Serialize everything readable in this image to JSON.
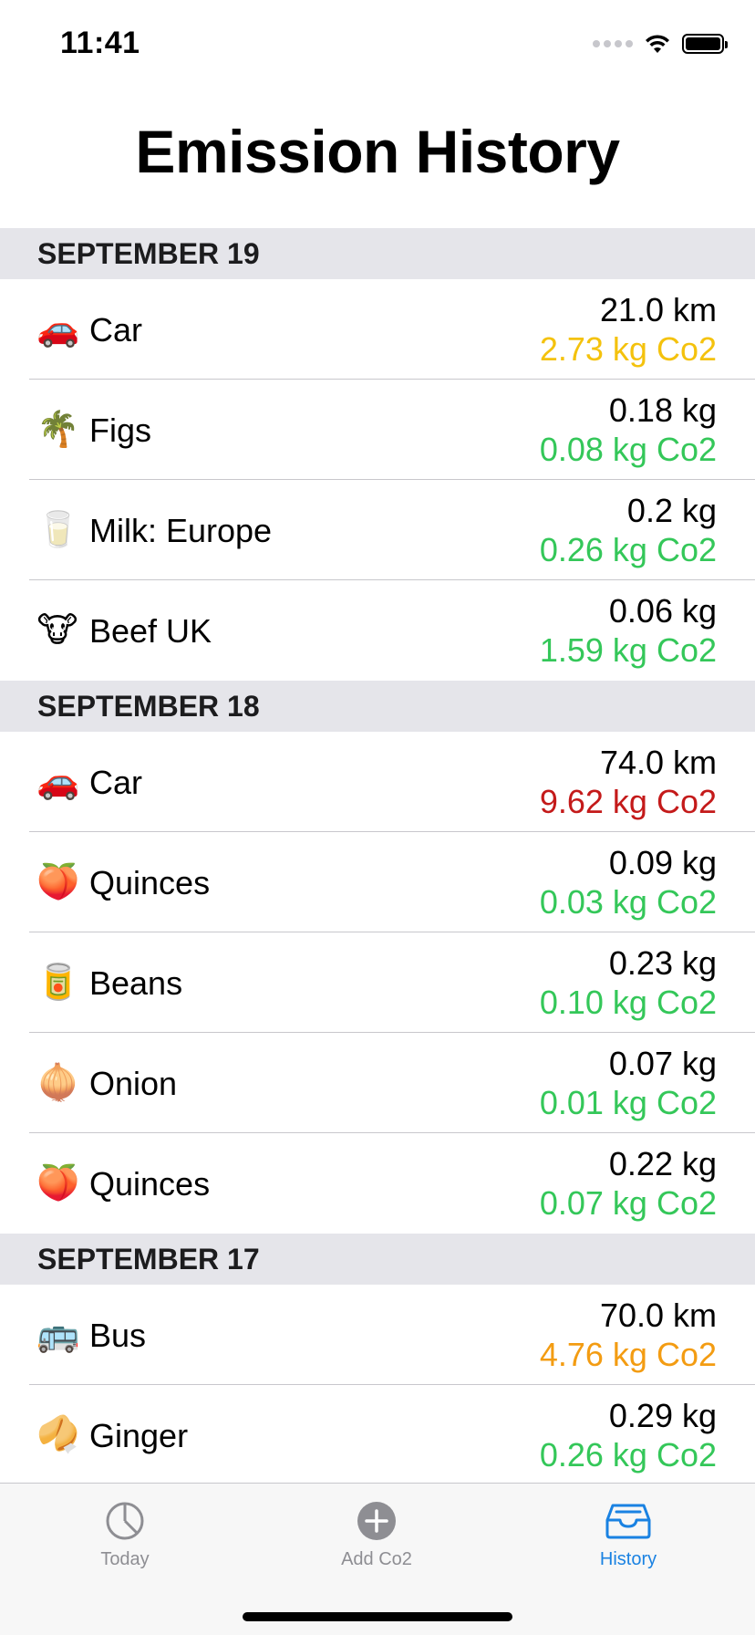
{
  "status_bar": {
    "time": "11:41"
  },
  "header": {
    "title": "Emission History"
  },
  "colors": {
    "yellow": "#f4c20d",
    "green": "#34c759",
    "red": "#c41a1a",
    "orange": "#f39c12",
    "accent": "#1a82e2",
    "tab_inactive": "#8e8e93"
  },
  "sections": [
    {
      "label": "SEPTEMBER 19",
      "items": [
        {
          "icon": "🚗",
          "icon_name": "car-icon",
          "name": "Car",
          "amount": "21.0 km",
          "co2": "2.73 kg Co2",
          "co2_color": "#f4c20d"
        },
        {
          "icon": "🌴",
          "icon_name": "palm-tree-icon",
          "name": "Figs",
          "amount": "0.18 kg",
          "co2": "0.08 kg Co2",
          "co2_color": "#34c759"
        },
        {
          "icon": "🥛",
          "icon_name": "milk-glass-icon",
          "name": "Milk: Europe",
          "amount": "0.2 kg",
          "co2": "0.26 kg Co2",
          "co2_color": "#34c759"
        },
        {
          "icon": "🐮",
          "icon_name": "cow-icon",
          "name": "Beef UK",
          "amount": "0.06 kg",
          "co2": "1.59 kg Co2",
          "co2_color": "#34c759"
        }
      ]
    },
    {
      "label": "SEPTEMBER 18",
      "items": [
        {
          "icon": "🚗",
          "icon_name": "car-icon",
          "name": "Car",
          "amount": "74.0 km",
          "co2": "9.62 kg Co2",
          "co2_color": "#c41a1a"
        },
        {
          "icon": "🍑",
          "icon_name": "peach-icon",
          "name": "Quinces",
          "amount": "0.09 kg",
          "co2": "0.03 kg Co2",
          "co2_color": "#34c759"
        },
        {
          "icon": "🥫",
          "icon_name": "can-icon",
          "name": "Beans",
          "amount": "0.23 kg",
          "co2": "0.10 kg Co2",
          "co2_color": "#34c759"
        },
        {
          "icon": "🧅",
          "icon_name": "onion-icon",
          "name": "Onion",
          "amount": "0.07 kg",
          "co2": "0.01 kg Co2",
          "co2_color": "#34c759"
        },
        {
          "icon": "🍑",
          "icon_name": "peach-icon",
          "name": "Quinces",
          "amount": "0.22 kg",
          "co2": "0.07 kg Co2",
          "co2_color": "#34c759"
        }
      ]
    },
    {
      "label": "SEPTEMBER 17",
      "items": [
        {
          "icon": "🚌",
          "icon_name": "bus-icon",
          "name": "Bus",
          "amount": "70.0 km",
          "co2": "4.76 kg Co2",
          "co2_color": "#f39c12"
        },
        {
          "icon": "🥠",
          "icon_name": "ginger-icon",
          "name": "Ginger",
          "amount": "0.29 kg",
          "co2": "0.26 kg Co2",
          "co2_color": "#34c759"
        }
      ]
    }
  ],
  "tabs": [
    {
      "label": "Today",
      "icon_name": "clock-chart-icon",
      "active": false
    },
    {
      "label": "Add Co2",
      "icon_name": "plus-circle-icon",
      "active": false
    },
    {
      "label": "History",
      "icon_name": "tray-icon",
      "active": true
    }
  ]
}
